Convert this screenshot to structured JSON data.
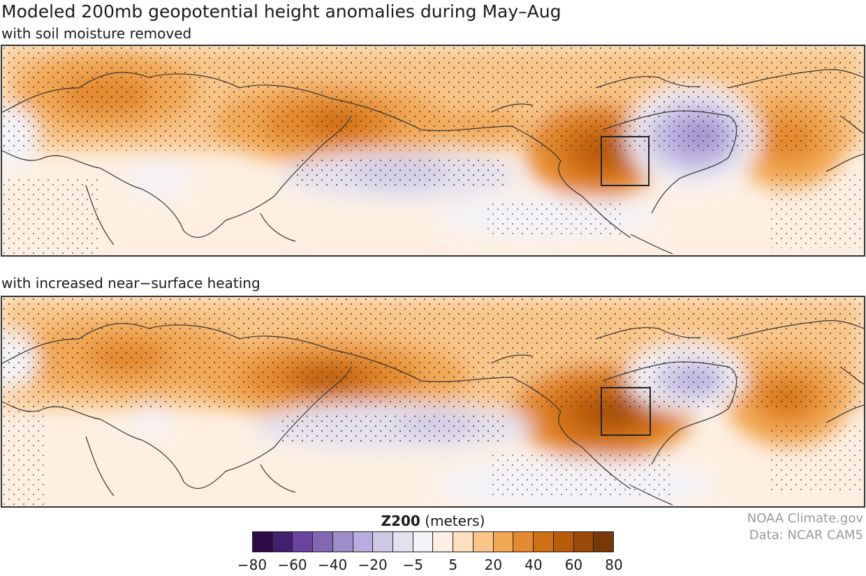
{
  "header": {
    "title": "Modeled 200mb geopotential height anomalies during May–Aug",
    "subtitle_top": "with soil moisture removed",
    "subtitle_bottom": "with increased near−surface heating"
  },
  "legend": {
    "variable": "Z200",
    "units": "(meters)",
    "colors": [
      "#2d0a48",
      "#44216e",
      "#6a43a1",
      "#8467b3",
      "#9e8fc8",
      "#b8ace0",
      "#cfc9e4",
      "#e4e1ef",
      "#f4f3f8",
      "#fdf0e3",
      "#fde0c0",
      "#f9c689",
      "#f2a854",
      "#e58a2f",
      "#d07015",
      "#b85b0b",
      "#9b4a0a",
      "#7a3808"
    ],
    "tick_labels": [
      "−80",
      "−60",
      "−40",
      "−20",
      "−5",
      "5",
      "20",
      "40",
      "60",
      "80"
    ]
  },
  "credits": {
    "line1": "NOAA Climate.gov",
    "line2": "Data: NCAR CAM5"
  }
}
